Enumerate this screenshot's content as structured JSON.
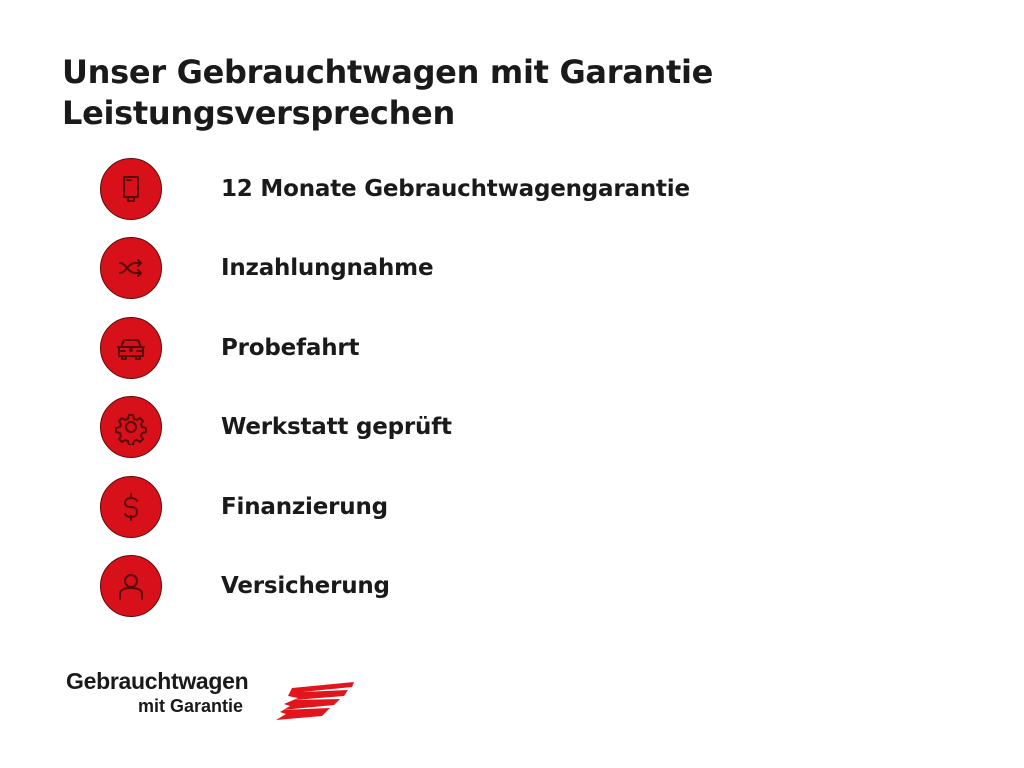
{
  "title": {
    "line1": "Unser Gebrauchtwagen mit Garantie",
    "line2": "Leistungsversprechen"
  },
  "accent_color": "#d8101a",
  "items": [
    {
      "icon": "book-icon",
      "label": "12 Monate Gebrauchtwagengarantie"
    },
    {
      "icon": "shuffle-icon",
      "label": "Inzahlungnahme"
    },
    {
      "icon": "car-icon",
      "label": "Probefahrt"
    },
    {
      "icon": "gear-icon",
      "label": "Werkstatt geprüft"
    },
    {
      "icon": "dollar-icon",
      "label": "Finanzierung"
    },
    {
      "icon": "person-icon",
      "label": "Versicherung"
    }
  ],
  "logo": {
    "line1": "Gebrauchtwagen",
    "line2": "mit Garantie"
  }
}
